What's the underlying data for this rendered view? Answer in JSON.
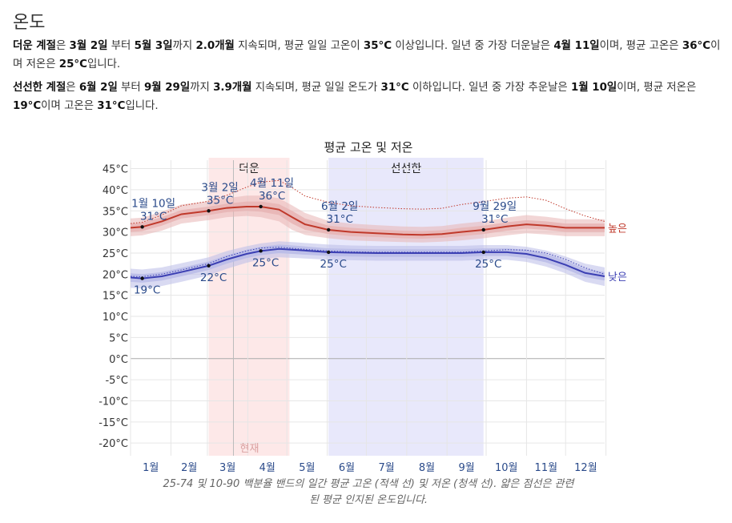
{
  "heading": "온도",
  "hot_season": {
    "t1": "더운 계절",
    "t2": "은 ",
    "start": "3월 2일",
    "t3": " 부터 ",
    "end": "5월 3일",
    "t4": "까지 ",
    "duration": "2.0개월",
    "t5": " 지속되며, 평균 일일 고온이 ",
    "threshold": "35°C",
    "t6": " 이상입니다. 일년 중 가장 더운날은 ",
    "peak_day": "4월 11일",
    "t7": "이며, 평균 고온은 ",
    "peak_high": "36°C",
    "t8": "이며 저온은 ",
    "peak_low": "25°C",
    "t9": "입니다."
  },
  "cool_season": {
    "t1": "선선한 계절",
    "t2": "은 ",
    "start": "6월 2일",
    "t3": " 부터 ",
    "end": "9월 29일",
    "t4": "까지 ",
    "duration": "3.9개월",
    "t5": " 지속되며, 평균 일일 온도가 ",
    "threshold": "31°C",
    "t6": " 이하입니다. 일년 중 가장 추운날은 ",
    "coldest_day": "1월 10일",
    "t7": "이며, 평균 저온은 ",
    "coldest_low": "19°C",
    "t8": "이며 고온은 ",
    "coldest_high": "31°C",
    "t9": "입니다."
  },
  "caption_lines": [
    "25-74 및 10-90 백분율 밴드의 일간 평균 고온 (적색 선) 및 저온 (청색 선). 얇은 점선은 관련",
    "된 평균 인지된 온도입니다."
  ],
  "colors": {
    "high_line": "#c0392b",
    "high_band": "#e8b4b4",
    "low_line": "#3b3fb3",
    "low_band": "#b9bbe8",
    "hot_region": "#fde8e8",
    "cool_region": "#e8e8fb",
    "label_blue": "#2a4a8a"
  },
  "chart_data": {
    "type": "line",
    "title": "평균 고온 및 저온",
    "ylim": [
      -23,
      47
    ],
    "yticks": [
      45,
      40,
      35,
      30,
      25,
      20,
      15,
      10,
      5,
      0,
      -5,
      -10,
      -15,
      -20
    ],
    "ytick_labels": [
      "45°C",
      "40°C",
      "35°C",
      "30°C",
      "25°C",
      "20°C",
      "15°C",
      "10°C",
      "5°C",
      "0°C",
      "-5°C",
      "-10°C",
      "-15°C",
      "-20°C"
    ],
    "x_months": [
      "1월",
      "2월",
      "3월",
      "4월",
      "5월",
      "6월",
      "7월",
      "8월",
      "9월",
      "10월",
      "11월",
      "12월"
    ],
    "grid": true,
    "legend": "right-end labels",
    "series": [
      {
        "name": "높은",
        "kind": "high",
        "x": [
          1,
          10,
          25,
          40,
          61,
          75,
          90,
          101,
          115,
          125,
          135,
          153,
          170,
          190,
          210,
          225,
          240,
          255,
          272,
          290,
          305,
          320,
          335,
          350,
          365
        ],
        "y": [
          31,
          31.2,
          32.5,
          34.2,
          35,
          35.7,
          36,
          36,
          35.3,
          33.5,
          31.8,
          30.5,
          30,
          29.7,
          29.4,
          29.3,
          29.5,
          30,
          30.5,
          31.3,
          31.8,
          31.5,
          31,
          31,
          31
        ],
        "band_25_75": [
          [
            30,
            32
          ],
          [
            30.2,
            32.2
          ],
          [
            31.5,
            33.5
          ],
          [
            33.2,
            35.2
          ],
          [
            34,
            36
          ],
          [
            34.7,
            36.7
          ],
          [
            35,
            37.2
          ],
          [
            34.8,
            37.2
          ],
          [
            34,
            36.6
          ],
          [
            32,
            35
          ],
          [
            30.5,
            33.2
          ],
          [
            29.5,
            31.5
          ],
          [
            29,
            31
          ],
          [
            28.8,
            30.6
          ],
          [
            28.5,
            30.3
          ],
          [
            28.4,
            30.2
          ],
          [
            28.6,
            30.4
          ],
          [
            29,
            31
          ],
          [
            29.5,
            31.5
          ],
          [
            30.3,
            32.3
          ],
          [
            30.8,
            32.8
          ],
          [
            30.5,
            32.5
          ],
          [
            30,
            32
          ],
          [
            30,
            32
          ],
          [
            30,
            32
          ]
        ],
        "band_10_90": [
          [
            29,
            33.2
          ],
          [
            29.2,
            33.4
          ],
          [
            30.3,
            34.8
          ],
          [
            32,
            36.5
          ],
          [
            32.8,
            37.3
          ],
          [
            33.5,
            38
          ],
          [
            33.8,
            38.6
          ],
          [
            33.5,
            38.6
          ],
          [
            32.5,
            38
          ],
          [
            30.5,
            36.3
          ],
          [
            29.3,
            34.5
          ],
          [
            28.5,
            32.6
          ],
          [
            28,
            32
          ],
          [
            27.8,
            31.6
          ],
          [
            27.6,
            31.3
          ],
          [
            27.5,
            31.2
          ],
          [
            27.7,
            31.4
          ],
          [
            28,
            32
          ],
          [
            28.5,
            32.5
          ],
          [
            29.2,
            33.4
          ],
          [
            29.7,
            34
          ],
          [
            29.4,
            33.6
          ],
          [
            29,
            33
          ],
          [
            29,
            33
          ],
          [
            29,
            33
          ]
        ],
        "perceived": [
          32,
          32.3,
          34,
          36.2,
          37.3,
          38.7,
          40.6,
          41.8,
          42.2,
          40.5,
          38.5,
          37,
          36.2,
          35.8,
          35.5,
          35.4,
          35.6,
          36.5,
          37.2,
          38,
          38.3,
          37.5,
          35.5,
          33.8,
          32.5
        ]
      },
      {
        "name": "낮은",
        "kind": "low",
        "x": [
          1,
          10,
          25,
          40,
          61,
          75,
          90,
          101,
          115,
          130,
          153,
          170,
          190,
          210,
          225,
          240,
          255,
          272,
          290,
          305,
          320,
          335,
          350,
          365
        ],
        "y": [
          19.2,
          19,
          19.5,
          20.5,
          22,
          23.5,
          24.8,
          25.5,
          26,
          25.7,
          25.2,
          25.1,
          25,
          25,
          25,
          25,
          25,
          25.2,
          25.2,
          24.8,
          23.8,
          22.2,
          20.3,
          19.5
        ],
        "band_25_75": [
          [
            18.2,
            20.2
          ],
          [
            18,
            20
          ],
          [
            18.5,
            20.5
          ],
          [
            19.5,
            21.5
          ],
          [
            21,
            23
          ],
          [
            22.5,
            24.5
          ],
          [
            23.8,
            25.8
          ],
          [
            24.5,
            26.5
          ],
          [
            25,
            27
          ],
          [
            24.7,
            26.7
          ],
          [
            24.3,
            26.1
          ],
          [
            24.2,
            26
          ],
          [
            24.1,
            25.9
          ],
          [
            24.1,
            25.9
          ],
          [
            24.1,
            25.9
          ],
          [
            24.1,
            25.9
          ],
          [
            24.1,
            25.9
          ],
          [
            24.3,
            26.1
          ],
          [
            24.3,
            26.1
          ],
          [
            23.8,
            25.8
          ],
          [
            22.8,
            24.8
          ],
          [
            21.2,
            23.2
          ],
          [
            19.3,
            21.3
          ],
          [
            18.5,
            20.5
          ]
        ],
        "band_10_90": [
          [
            16.8,
            21.3
          ],
          [
            16.6,
            21.1
          ],
          [
            17.2,
            21.6
          ],
          [
            18.2,
            22.6
          ],
          [
            19.7,
            24
          ],
          [
            21.3,
            25.5
          ],
          [
            22.7,
            26.6
          ],
          [
            23.5,
            27.3
          ],
          [
            24,
            27.8
          ],
          [
            23.8,
            27.5
          ],
          [
            23.4,
            27
          ],
          [
            23.3,
            26.8
          ],
          [
            23.2,
            26.7
          ],
          [
            23.2,
            26.7
          ],
          [
            23.2,
            26.7
          ],
          [
            23.2,
            26.7
          ],
          [
            23.2,
            26.7
          ],
          [
            23.4,
            26.9
          ],
          [
            23.4,
            26.9
          ],
          [
            22.9,
            26.5
          ],
          [
            21.8,
            25.6
          ],
          [
            20.2,
            24.2
          ],
          [
            18.2,
            22.5
          ],
          [
            17.2,
            21.6
          ]
        ],
        "perceived": [
          19.5,
          19.4,
          20,
          21,
          22.5,
          24.2,
          25.5,
          26.2,
          26.4,
          26,
          25.5,
          25.3,
          25.2,
          25.2,
          25.2,
          25.2,
          25.2,
          25.5,
          25.8,
          25.7,
          25,
          23.5,
          21.5,
          20
        ]
      }
    ],
    "regions": [
      {
        "label": "더운",
        "start_day": 61,
        "end_day": 123
      },
      {
        "label": "선선한",
        "start_day": 153,
        "end_day": 272
      }
    ],
    "current_marker": {
      "label": "현재",
      "day": 80
    },
    "annotations": [
      {
        "date": "1월 10일",
        "value": "31°C",
        "day": 10,
        "y": 31.2,
        "pos": "above"
      },
      {
        "date": "",
        "value": "19°C",
        "day": 10,
        "y": 19,
        "pos": "below"
      },
      {
        "date": "3월 2일",
        "value": "35°C",
        "day": 61,
        "y": 35,
        "pos": "above"
      },
      {
        "date": "",
        "value": "22°C",
        "day": 61,
        "y": 22,
        "pos": "below"
      },
      {
        "date": "4월 11일",
        "value": "36°C",
        "day": 101,
        "y": 36,
        "pos": "above"
      },
      {
        "date": "",
        "value": "25°C",
        "day": 101,
        "y": 25.5,
        "pos": "below"
      },
      {
        "date": "6월 2일",
        "value": "31°C",
        "day": 153,
        "y": 30.5,
        "pos": "above"
      },
      {
        "date": "",
        "value": "25°C",
        "day": 153,
        "y": 25.2,
        "pos": "below"
      },
      {
        "date": "9월 29일",
        "value": "31°C",
        "day": 272,
        "y": 30.5,
        "pos": "above"
      },
      {
        "date": "",
        "value": "25°C",
        "day": 272,
        "y": 25.2,
        "pos": "below"
      }
    ]
  }
}
